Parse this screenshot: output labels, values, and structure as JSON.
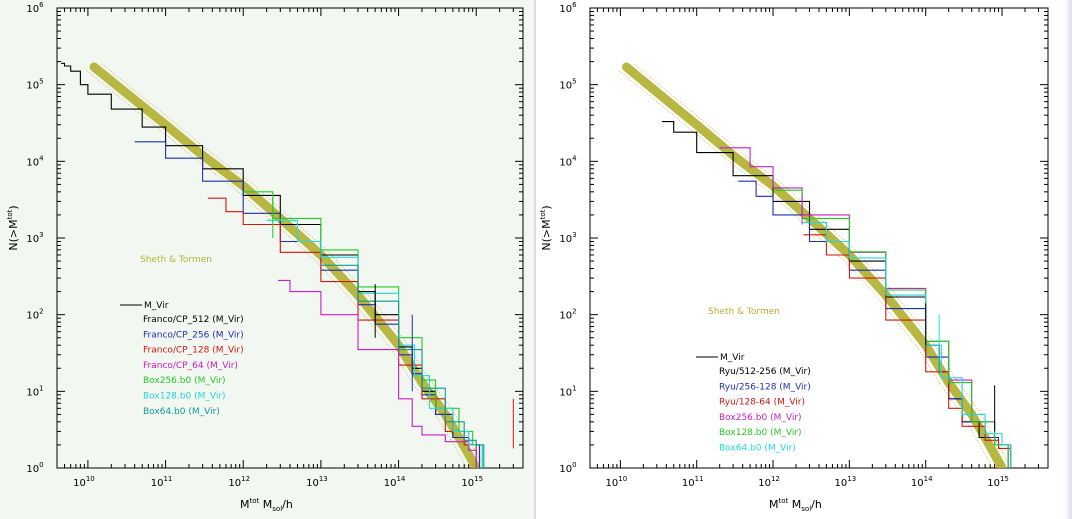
{
  "colors": {
    "black": "#000000",
    "blue": "#1f2fb0",
    "red": "#cc1a10",
    "magenta": "#c81ec8",
    "green": "#22cc22",
    "cyan": "#22d8dc",
    "teal": "#0e9c94",
    "olive": "#b3b337"
  },
  "chart_data": [
    {
      "type": "line",
      "scale": "log-log",
      "xlim": [
        4000000000.0,
        4000000000000000.0
      ],
      "ylim": [
        1,
        1000000.0
      ],
      "xlabel": "M^tot M_sol/h",
      "ylabel": "N(>M^tot)",
      "x_ticks": [
        {
          "base": "10",
          "exp": "10",
          "value": 10000000000.0
        },
        {
          "base": "10",
          "exp": "11",
          "value": 100000000000.0
        },
        {
          "base": "10",
          "exp": "12",
          "value": 1000000000000.0
        },
        {
          "base": "10",
          "exp": "13",
          "value": 10000000000000.0
        },
        {
          "base": "10",
          "exp": "14",
          "value": 100000000000000.0
        },
        {
          "base": "10",
          "exp": "15",
          "value": 1000000000000000.0
        }
      ],
      "y_ticks": [
        {
          "base": "10",
          "exp": "0",
          "value": 1
        },
        {
          "base": "10",
          "exp": "1",
          "value": 10
        },
        {
          "base": "10",
          "exp": "2",
          "value": 100
        },
        {
          "base": "10",
          "exp": "3",
          "value": 1000
        },
        {
          "base": "10",
          "exp": "4",
          "value": 10000
        },
        {
          "base": "10",
          "exp": "5",
          "value": 100000
        },
        {
          "base": "10",
          "exp": "6",
          "value": 1000000
        }
      ],
      "theory": {
        "name": "Sheth & Tormen",
        "color": "#b3b337",
        "x": [
          12000000000.0,
          30000000000.0,
          100000000000.0,
          300000000000.0,
          1000000000000.0,
          3000000000000.0,
          10000000000000.0,
          30000000000000.0,
          100000000000000.0,
          200000000000000.0,
          400000000000000.0,
          600000000000000.0,
          800000000000000.0,
          1000000000000000.0
        ],
        "y": [
          170000,
          80000,
          30000,
          12000,
          4800,
          1800,
          600,
          180,
          40,
          13,
          5,
          2.5,
          1.5,
          1
        ]
      },
      "legend_key": "M_Vir",
      "legend": [
        {
          "label": "Franco/CP_512",
          "suffix": " (M_Vir)",
          "color": "#000000",
          "suffix_color": "#000000"
        },
        {
          "label": "Franco/CP_256",
          "suffix": " (M_Vir)",
          "color": "#1f2fb0",
          "suffix_color": "#1f2fb0"
        },
        {
          "label": "Franco/CP_128",
          "suffix": " (M_Vir)",
          "color": "#cc1a10",
          "suffix_color": "#cc1a10"
        },
        {
          "label": "Franco/CP_64",
          "suffix": " (M_Vir)",
          "color": "#c81ec8",
          "suffix_color": "#c81ec8"
        },
        {
          "label": "Box256.b0",
          "suffix": " (M_Vir)",
          "color": "#22cc22",
          "suffix_color": "#22cc22"
        },
        {
          "label": "Box128.b0",
          "suffix": " (M_Vir)",
          "color": "#22d8dc",
          "suffix_color": "#22d8dc"
        },
        {
          "label": "Box64.b0",
          "suffix": " (M_Vir)",
          "color": "#0e9c94",
          "suffix_color": "#0e9c94"
        }
      ],
      "series": [
        {
          "color": "#000000",
          "x": [
            4500000000.0,
            5000000000.0,
            6000000000.0,
            8000000000.0,
            10000000000.0,
            20000000000.0,
            50000000000.0,
            100000000000.0,
            300000000000.0,
            1000000000000.0,
            3000000000000.0,
            10000000000000.0,
            30000000000000.0,
            50000000000000.0,
            100000000000000.0,
            150000000000000.0,
            200000000000000.0,
            300000000000000.0,
            500000000000000.0,
            800000000000000.0,
            1100000000000000.0
          ],
          "y": [
            190000,
            175000,
            150000,
            100000,
            75000,
            48000,
            28000,
            16000,
            8000,
            3600,
            1500,
            600,
            200,
            100,
            38,
            20,
            10,
            5,
            2.5,
            2,
            1
          ]
        },
        {
          "color": "#1f2fb0",
          "x": [
            40000000000.0,
            100000000000.0,
            300000000000.0,
            1000000000000.0,
            3000000000000.0,
            10000000000000.0,
            30000000000000.0,
            50000000000000.0,
            100000000000000.0,
            150000000000000.0,
            200000000000000.0,
            300000000000000.0,
            500000000000000.0,
            800000000000000.0,
            1100000000000000.0
          ],
          "y": [
            18000,
            11000,
            5500,
            2100,
            900,
            380,
            135,
            75,
            30,
            17,
            9,
            5,
            2.5,
            2,
            1
          ]
        },
        {
          "color": "#cc1a10",
          "x": [
            350000000000.0,
            600000000000.0,
            1000000000000.0,
            3000000000000.0,
            10000000000000.0,
            30000000000000.0,
            100000000000000.0,
            200000000000000.0,
            400000000000000.0,
            700000000000000.0,
            1000000000000000.0
          ],
          "y": [
            3300,
            2200,
            1500,
            650,
            270,
            85,
            22,
            8,
            3,
            2,
            1
          ]
        },
        {
          "color": "#c81ec8",
          "x": [
            2800000000000.0,
            4000000000000.0,
            10000000000000.0,
            30000000000000.0,
            100000000000000.0,
            150000000000000.0,
            200000000000000.0,
            400000000000000.0,
            800000000000000.0,
            1000000000000000.0
          ],
          "y": [
            280,
            200,
            100,
            35,
            8,
            3.5,
            2.7,
            2.2,
            1.7,
            1
          ]
        },
        {
          "color": "#22cc22",
          "x": [
            1000000000000.0,
            2400000000000.0,
            10000000000000.0,
            30000000000000.0,
            100000000000000.0,
            200000000000000.0,
            300000000000000.0,
            600000000000000.0,
            900000000000000.0,
            1200000000000000.0
          ],
          "y": [
            4000,
            1800,
            700,
            230,
            50,
            14,
            6,
            3,
            2,
            1
          ]
        },
        {
          "color": "#22d8dc",
          "x": [
            2000000000000.0,
            5000000000000.0,
            10000000000000.0,
            30000000000000.0,
            100000000000000.0,
            160000000000000.0,
            250000000000000.0,
            500000000000000.0,
            800000000000000.0,
            1200000000000000.0
          ],
          "y": [
            1700,
            900,
            560,
            190,
            40,
            16,
            6,
            3,
            2,
            1
          ]
        },
        {
          "color": "#0e9c94",
          "x": [
            10000000000000.0,
            30000000000000.0,
            100000000000000.0,
            200000000000000.0,
            400000000000000.0,
            700000000000000.0,
            1000000000000000.0,
            1250000000000000.0
          ],
          "y": [
            440,
            150,
            35,
            11,
            4,
            2.3,
            2,
            1
          ]
        }
      ],
      "markers": [
        {
          "color": "#22cc22",
          "x": 2400000000000.0,
          "y_range": [
            1000,
            3600
          ]
        },
        {
          "color": "#000000",
          "x": 50000000000000.0,
          "y_range": [
            50,
            250
          ]
        },
        {
          "color": "#1f2fb0",
          "x": 150000000000000.0,
          "y_range": [
            10,
            100
          ]
        },
        {
          "color": "#cc1a10",
          "x": 3000000000000000.0,
          "y_range": [
            1.8,
            8
          ]
        }
      ]
    },
    {
      "type": "line",
      "scale": "log-log",
      "xlim": [
        4000000000.0,
        4000000000000000.0
      ],
      "ylim": [
        1,
        1000000.0
      ],
      "xlabel": "M^tot M_sol/h",
      "ylabel": "N(>M^tot)",
      "x_ticks": [
        {
          "base": "10",
          "exp": "10",
          "value": 10000000000.0
        },
        {
          "base": "10",
          "exp": "11",
          "value": 100000000000.0
        },
        {
          "base": "10",
          "exp": "12",
          "value": 1000000000000.0
        },
        {
          "base": "10",
          "exp": "13",
          "value": 10000000000000.0
        },
        {
          "base": "10",
          "exp": "14",
          "value": 100000000000000.0
        },
        {
          "base": "10",
          "exp": "15",
          "value": 1000000000000000.0
        }
      ],
      "y_ticks": [
        {
          "base": "10",
          "exp": "0",
          "value": 1
        },
        {
          "base": "10",
          "exp": "1",
          "value": 10
        },
        {
          "base": "10",
          "exp": "2",
          "value": 100
        },
        {
          "base": "10",
          "exp": "3",
          "value": 1000
        },
        {
          "base": "10",
          "exp": "4",
          "value": 10000
        },
        {
          "base": "10",
          "exp": "5",
          "value": 100000
        },
        {
          "base": "10",
          "exp": "6",
          "value": 1000000
        }
      ],
      "theory": {
        "name": "Sheth & Tormen",
        "color": "#b3b337",
        "x": [
          12000000000.0,
          30000000000.0,
          100000000000.0,
          300000000000.0,
          1000000000000.0,
          3000000000000.0,
          10000000000000.0,
          30000000000000.0,
          100000000000000.0,
          200000000000000.0,
          400000000000000.0,
          600000000000000.0,
          800000000000000.0,
          1000000000000000.0
        ],
        "y": [
          170000,
          80000,
          30000,
          12000,
          4800,
          1800,
          600,
          180,
          40,
          13,
          5,
          2.5,
          1.5,
          1
        ]
      },
      "legend_key": "M_Vir",
      "legend": [
        {
          "label": "Ryu/512-256",
          "suffix": " (M_Vir)",
          "color": "#000000",
          "suffix_color": "#000000"
        },
        {
          "label": "Ryu/256-128",
          "suffix": " (M_Vir)",
          "color": "#1f2fb0",
          "suffix_color": "#1f2fb0"
        },
        {
          "label": "Ryu/128-64",
          "suffix": " (M_Vir)",
          "color": "#cc1a10",
          "suffix_color": "#cc1a10"
        },
        {
          "label": "Box256.b0",
          "suffix": " (M_Vir)",
          "color": "#c81ec8",
          "suffix_color": "#c81ec8"
        },
        {
          "label": "Box128.b0",
          "suffix": " (M_Vir)",
          "color": "#22cc22",
          "suffix_color": "#22cc22"
        },
        {
          "label": "Box64.b0",
          "suffix": " (M_Vir)",
          "color": "#22d8dc",
          "suffix_color": "#22d8dc"
        }
      ],
      "series": [
        {
          "color": "#000000",
          "x": [
            35000000000.0,
            50000000000.0,
            100000000000.0,
            300000000000.0,
            1000000000000.0,
            3000000000000.0,
            10000000000000.0,
            30000000000000.0,
            100000000000000.0,
            150000000000000.0,
            200000000000000.0,
            300000000000000.0,
            500000000000000.0,
            800000000000000.0,
            1200000000000000.0
          ],
          "y": [
            33000,
            24000,
            13000,
            6500,
            3000,
            1300,
            500,
            170,
            40,
            18,
            8,
            4,
            2.5,
            2,
            1
          ]
        },
        {
          "color": "#1f2fb0",
          "x": [
            350000000000.0,
            600000000000.0,
            1000000000000.0,
            3000000000000.0,
            10000000000000.0,
            30000000000000.0,
            100000000000000.0,
            200000000000000.0,
            300000000000000.0,
            600000000000000.0,
            900000000000000.0,
            1300000000000000.0
          ],
          "y": [
            5500,
            3500,
            2000,
            900,
            380,
            120,
            28,
            8,
            4,
            2.5,
            2,
            1
          ]
        },
        {
          "color": "#cc1a10",
          "x": [
            2500000000000.0,
            5000000000000.0,
            10000000000000.0,
            30000000000000.0,
            100000000000000.0,
            200000000000000.0,
            300000000000000.0,
            600000000000000.0,
            900000000000000.0,
            1300000000000000.0
          ],
          "y": [
            1100,
            600,
            300,
            85,
            18,
            6,
            3.5,
            2.3,
            1.8,
            1
          ]
        },
        {
          "color": "#c81ec8",
          "x": [
            200000000000.0,
            500000000000.0,
            1000000000000.0,
            2400000000000.0,
            10000000000000.0,
            30000000000000.0,
            100000000000000.0,
            200000000000000.0,
            400000000000000.0,
            800000000000000.0,
            1200000000000000.0
          ],
          "y": [
            15000,
            8500,
            4500,
            2000,
            650,
            220,
            45,
            14,
            4,
            2,
            1
          ]
        },
        {
          "color": "#22cc22",
          "x": [
            1000000000000.0,
            2400000000000.0,
            10000000000000.0,
            30000000000000.0,
            100000000000000.0,
            200000000000000.0,
            400000000000000.0,
            800000000000000.0,
            1200000000000000.0
          ],
          "y": [
            4200,
            1800,
            660,
            210,
            45,
            13,
            4,
            2,
            1
          ]
        },
        {
          "color": "#22d8dc",
          "x": [
            2400000000000.0,
            5000000000000.0,
            10000000000000.0,
            30000000000000.0,
            100000000000000.0,
            160000000000000.0,
            300000000000000.0,
            600000000000000.0,
            1000000000000000.0,
            1300000000000000.0
          ],
          "y": [
            1600,
            900,
            550,
            180,
            40,
            15,
            5,
            2.8,
            2,
            1
          ]
        }
      ],
      "markers": [
        {
          "color": "#c81ec8",
          "x": 2400000000000.0,
          "y_range": [
            1500,
            3600
          ]
        },
        {
          "color": "#000000",
          "x": 100000000000000.0,
          "y_range": [
            40,
            140
          ]
        },
        {
          "color": "#22d8dc",
          "x": 150000000000000.0,
          "y_range": [
            18,
            100
          ]
        },
        {
          "color": "#000000",
          "x": 800000000000000.0,
          "y_range": [
            3,
            12
          ]
        }
      ]
    }
  ]
}
